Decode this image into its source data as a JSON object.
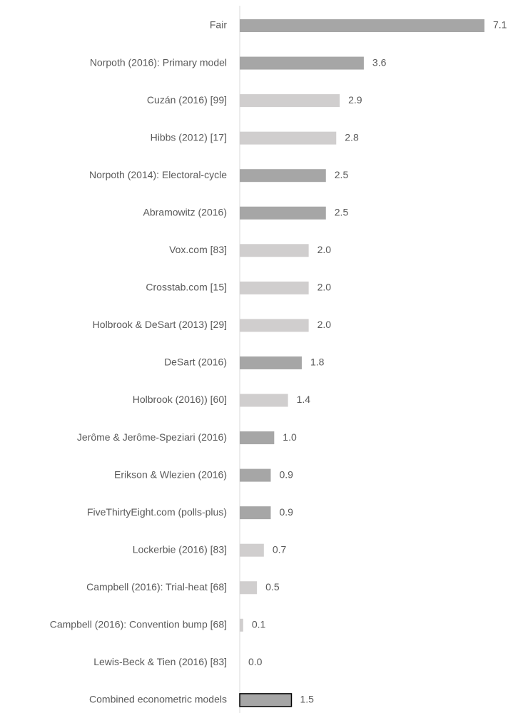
{
  "chart_data": {
    "type": "bar",
    "orientation": "horizontal",
    "categories": [
      "Fair",
      "Norpoth (2016): Primary model",
      "Cuzán (2016) [99]",
      "Hibbs (2012) [17]",
      "Norpoth (2014): Electoral-cycle",
      "Abramowitz (2016)",
      "Vox.com [83]",
      "Crosstab.com [15]",
      "Holbrook & DeSart (2013) [29]",
      "DeSart (2016)",
      "Holbrook (2016)) [60]",
      "Jerôme & Jerôme-Speziari (2016)",
      "Erikson & Wlezien (2016)",
      "FiveThirtyEight.com (polls-plus)",
      "Lockerbie (2016) [83]",
      "Campbell (2016): Trial-heat [68]",
      "Campbell (2016): Convention bump [68]",
      "Lewis-Beck & Tien (2016) [83]",
      "Combined econometric models"
    ],
    "values": [
      7.1,
      3.6,
      2.9,
      2.8,
      2.5,
      2.5,
      2.0,
      2.0,
      2.0,
      1.8,
      1.4,
      1.0,
      0.9,
      0.9,
      0.7,
      0.5,
      0.1,
      0.0,
      1.5
    ],
    "value_labels": [
      "7.1",
      "3.6",
      "2.9",
      "2.8",
      "2.5",
      "2.5",
      "2.0",
      "2.0",
      "2.0",
      "1.8",
      "1.4",
      "1.0",
      "0.9",
      "0.9",
      "0.7",
      "0.5",
      "0.1",
      "0.0",
      "1.5"
    ],
    "colors": [
      "#a6a6a6",
      "#a6a6a6",
      "#d0cece",
      "#d0cece",
      "#a6a6a6",
      "#a6a6a6",
      "#d0cece",
      "#d0cece",
      "#d0cece",
      "#a6a6a6",
      "#d0cece",
      "#a6a6a6",
      "#a6a6a6",
      "#a6a6a6",
      "#d0cece",
      "#d0cece",
      "#d0cece",
      "#d0cece",
      "#a6a6a6"
    ],
    "edgecolors": [
      null,
      null,
      null,
      null,
      null,
      null,
      null,
      null,
      null,
      null,
      null,
      null,
      null,
      null,
      null,
      null,
      null,
      null,
      "#000000"
    ]
  }
}
